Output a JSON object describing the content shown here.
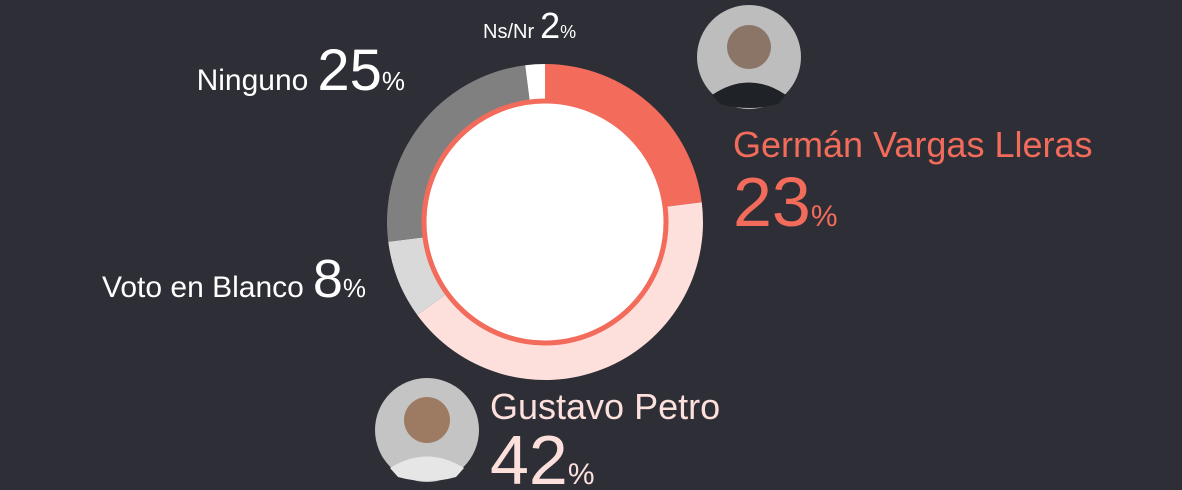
{
  "chart_data": {
    "type": "donut",
    "categories": [
      "Germán Vargas Lleras",
      "Gustavo Petro",
      "Voto en Blanco",
      "Ninguno",
      "Ns/Nr"
    ],
    "values": [
      23,
      42,
      8,
      25,
      2
    ],
    "value_labels": [
      "23%",
      "42%",
      "8%",
      "25%",
      "2%"
    ],
    "colors": [
      "#f26b5b",
      "#fde0dc",
      "#d9d9d9",
      "#808080",
      "#ffffff"
    ],
    "label_colors": [
      "#f26b5b",
      "#fde0dc",
      "#ffffff",
      "#ffffff",
      "#ffffff"
    ]
  }
}
